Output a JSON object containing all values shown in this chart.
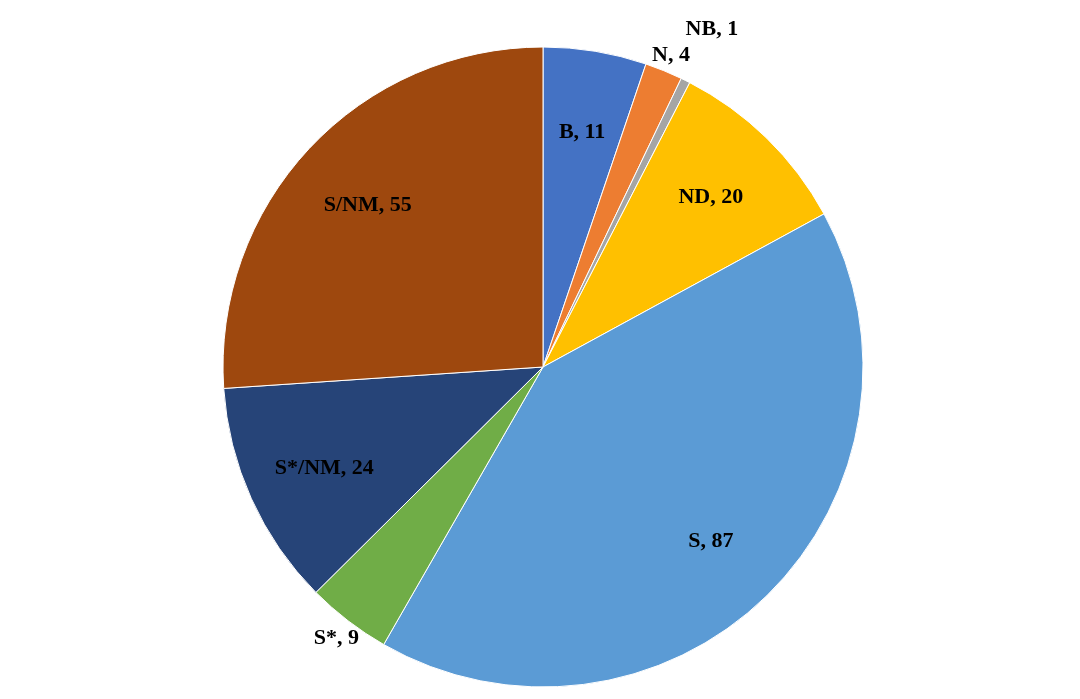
{
  "chart_data": {
    "type": "pie",
    "categories": [
      "B",
      "N",
      "NB",
      "ND",
      "S",
      "S*",
      "S*/NM",
      "S/NM"
    ],
    "values": [
      11,
      4,
      1,
      20,
      87,
      9,
      24,
      55
    ],
    "value_labels": [
      ", 11",
      ", 4",
      ", 1",
      ", 20",
      ", 87",
      ", 9",
      ", 24",
      ", 55"
    ],
    "colors": [
      "#4472c4",
      "#ed7d31",
      "#a5a5a5",
      "#ffc000",
      "#5b9bd5",
      "#70ad47",
      "#264478",
      "#9e480e"
    ]
  }
}
